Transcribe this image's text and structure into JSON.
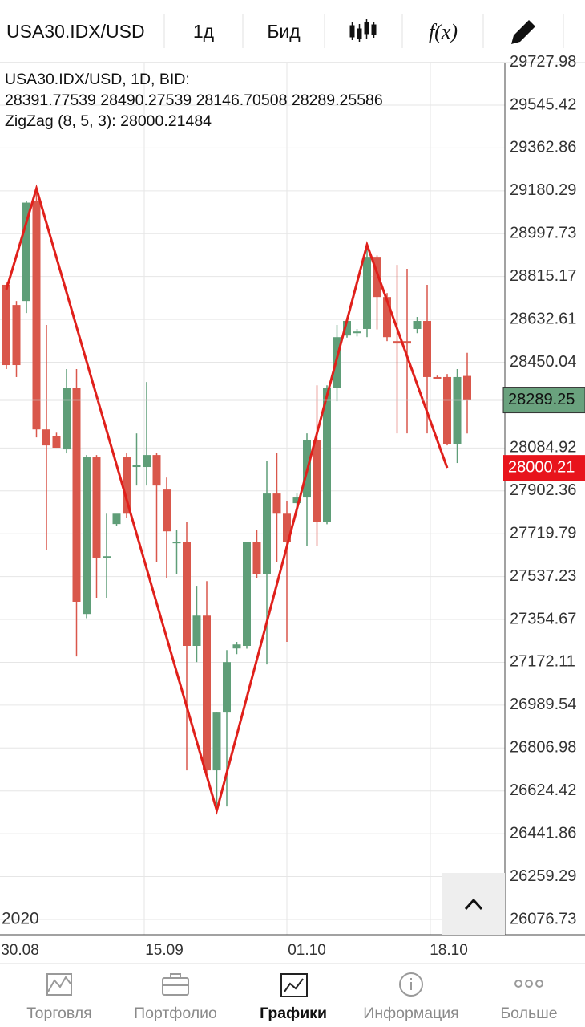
{
  "toolbar": {
    "symbol": "USA30.IDX/USD",
    "timeframe": "1д",
    "price_type": "Бид",
    "indicator_icon": "f(x)"
  },
  "info": {
    "line1": "USA30.IDX/USD, 1D, BID:",
    "line2": "28391.77539 28490.27539 28146.70508 28289.25586",
    "line3": "ZigZag (8, 5, 3): 28000.21484"
  },
  "chart_data": {
    "type": "candlestick",
    "up_color": "#5f9e78",
    "down_color": "#d9574b",
    "ylim": [
      26011.7,
      29726.5
    ],
    "yticks": [
      29727.98,
      29545.42,
      29362.86,
      29180.29,
      28997.73,
      28815.17,
      28632.61,
      28450.04,
      28084.92,
      27902.36,
      27719.79,
      27537.23,
      27354.67,
      27172.11,
      26989.54,
      26806.98,
      26624.42,
      26441.86,
      26259.29,
      26076.73
    ],
    "grid": true,
    "x_labels": [
      "30.08",
      "15.09",
      "01.10",
      "18.10"
    ],
    "year_label": "2020",
    "candles": [
      {
        "open": 28780,
        "high": 28790,
        "low": 28421,
        "close": 28438
      },
      {
        "open": 28694,
        "high": 28711,
        "low": 28387,
        "close": 28438
      },
      {
        "open": 28711,
        "high": 29138,
        "low": 28660,
        "close": 29130
      },
      {
        "open": 29138,
        "high": 29190,
        "low": 28130,
        "close": 28164
      },
      {
        "open": 28164,
        "high": 28609,
        "low": 27652,
        "close": 28096
      },
      {
        "open": 28137,
        "high": 28150,
        "low": 28086,
        "close": 28086
      },
      {
        "open": 28079,
        "high": 28421,
        "low": 28062,
        "close": 28342
      },
      {
        "open": 28342,
        "high": 28421,
        "low": 27197,
        "close": 27430
      },
      {
        "open": 27378,
        "high": 28055,
        "low": 27360,
        "close": 28045
      },
      {
        "open": 28045,
        "high": 28055,
        "low": 27447,
        "close": 27618
      },
      {
        "open": 27618,
        "high": 27805,
        "low": 27447,
        "close": 27624
      },
      {
        "open": 27761,
        "high": 27771,
        "low": 27754,
        "close": 27805
      },
      {
        "open": 28045,
        "high": 28062,
        "low": 27788,
        "close": 27805
      },
      {
        "open": 28004,
        "high": 28147,
        "low": 27925,
        "close": 28011
      },
      {
        "open": 28004,
        "high": 28366,
        "low": 27925,
        "close": 28055
      },
      {
        "open": 28055,
        "high": 28062,
        "low": 27600,
        "close": 27925
      },
      {
        "open": 27908,
        "high": 27959,
        "low": 27532,
        "close": 27730
      },
      {
        "open": 27679,
        "high": 27737,
        "low": 27549,
        "close": 27686
      },
      {
        "open": 27686,
        "high": 27771,
        "low": 26712,
        "close": 27242
      },
      {
        "open": 27242,
        "high": 27498,
        "low": 27173,
        "close": 27371
      },
      {
        "open": 27371,
        "high": 27518,
        "low": 26700,
        "close": 26712
      },
      {
        "open": 26712,
        "high": 26958,
        "low": 26541,
        "close": 26958
      },
      {
        "open": 26958,
        "high": 27224,
        "low": 26558,
        "close": 27173
      },
      {
        "open": 27231,
        "high": 27259,
        "low": 27207,
        "close": 27248
      },
      {
        "open": 27242,
        "high": 27686,
        "low": 27230,
        "close": 27686
      },
      {
        "open": 27686,
        "high": 27737,
        "low": 27532,
        "close": 27549
      },
      {
        "open": 27549,
        "high": 28028,
        "low": 27163,
        "close": 27891
      },
      {
        "open": 27891,
        "high": 28062,
        "low": 27600,
        "close": 27805
      },
      {
        "open": 27805,
        "high": 27857,
        "low": 27259,
        "close": 27686
      },
      {
        "open": 27850,
        "high": 27891,
        "low": 27805,
        "close": 27874
      },
      {
        "open": 27874,
        "high": 28147,
        "low": 27669,
        "close": 28120
      },
      {
        "open": 28120,
        "high": 28352,
        "low": 27669,
        "close": 27771
      },
      {
        "open": 27771,
        "high": 28352,
        "low": 27760,
        "close": 28342
      },
      {
        "open": 28342,
        "high": 28609,
        "low": 28284,
        "close": 28557
      },
      {
        "open": 28564,
        "high": 28640,
        "low": 28555,
        "close": 28626
      },
      {
        "open": 28574,
        "high": 28592,
        "low": 28560,
        "close": 28581
      },
      {
        "open": 28592,
        "high": 28950,
        "low": 28557,
        "close": 28899
      },
      {
        "open": 28899,
        "high": 28905,
        "low": 28590,
        "close": 28728
      },
      {
        "open": 28728,
        "high": 28745,
        "low": 28540,
        "close": 28557
      },
      {
        "open": 28540,
        "high": 28865,
        "low": 28147,
        "close": 28530
      },
      {
        "open": 28540,
        "high": 28848,
        "low": 28147,
        "close": 28530
      },
      {
        "open": 28592,
        "high": 28643,
        "low": 28574,
        "close": 28626
      },
      {
        "open": 28626,
        "high": 28780,
        "low": 28147,
        "close": 28387
      },
      {
        "open": 28387,
        "high": 28393,
        "low": 28380,
        "close": 28380
      },
      {
        "open": 28387,
        "high": 28400,
        "low": 28096,
        "close": 28103
      },
      {
        "open": 28103,
        "high": 28421,
        "low": 28021,
        "close": 28387
      },
      {
        "open": 28391.77539,
        "high": 28490.27539,
        "low": 28146.70508,
        "close": 28289.25586
      }
    ],
    "zigzag": {
      "color": "#e0201b",
      "x": [
        0,
        3,
        21,
        36,
        44
      ],
      "values": [
        28760,
        29190,
        26541,
        28950,
        28000.21484
      ]
    },
    "price_label": "28289.25",
    "price_label_color": "#6aa27e",
    "zigzag_label": "28000.21",
    "zigzag_label_color": "#e8141c"
  },
  "nav": {
    "items": [
      "Торговля",
      "Портфолио",
      "Графики",
      "Информация",
      "Больше"
    ],
    "active": 2
  }
}
